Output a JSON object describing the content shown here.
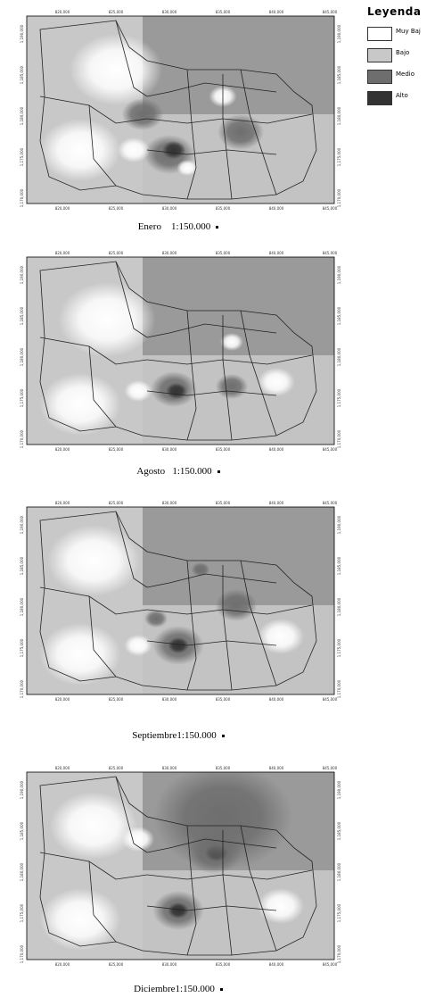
{
  "legend": {
    "title": "Leyenda",
    "items": [
      {
        "label": "Muy Baj",
        "color": "#ffffff"
      },
      {
        "label": "Bajo",
        "color": "#c8c8c8"
      },
      {
        "label": "Medio",
        "color": "#6e6e6e"
      },
      {
        "label": "Alto",
        "color": "#333333"
      }
    ]
  },
  "x_ticks": [
    "820,000",
    "825,000",
    "830,000",
    "835,000",
    "840,000",
    "845,000"
  ],
  "y_ticks": [
    "1,190,000",
    "1,185,000",
    "1,180,000",
    "1,175,000",
    "1,170,000"
  ],
  "maps": [
    {
      "caption": "Enero    1:150.000"
    },
    {
      "caption": "Agosto   1:150.000"
    },
    {
      "caption": "Septiembre1:150.000"
    },
    {
      "caption": "Diciembre1:150.000"
    }
  ]
}
